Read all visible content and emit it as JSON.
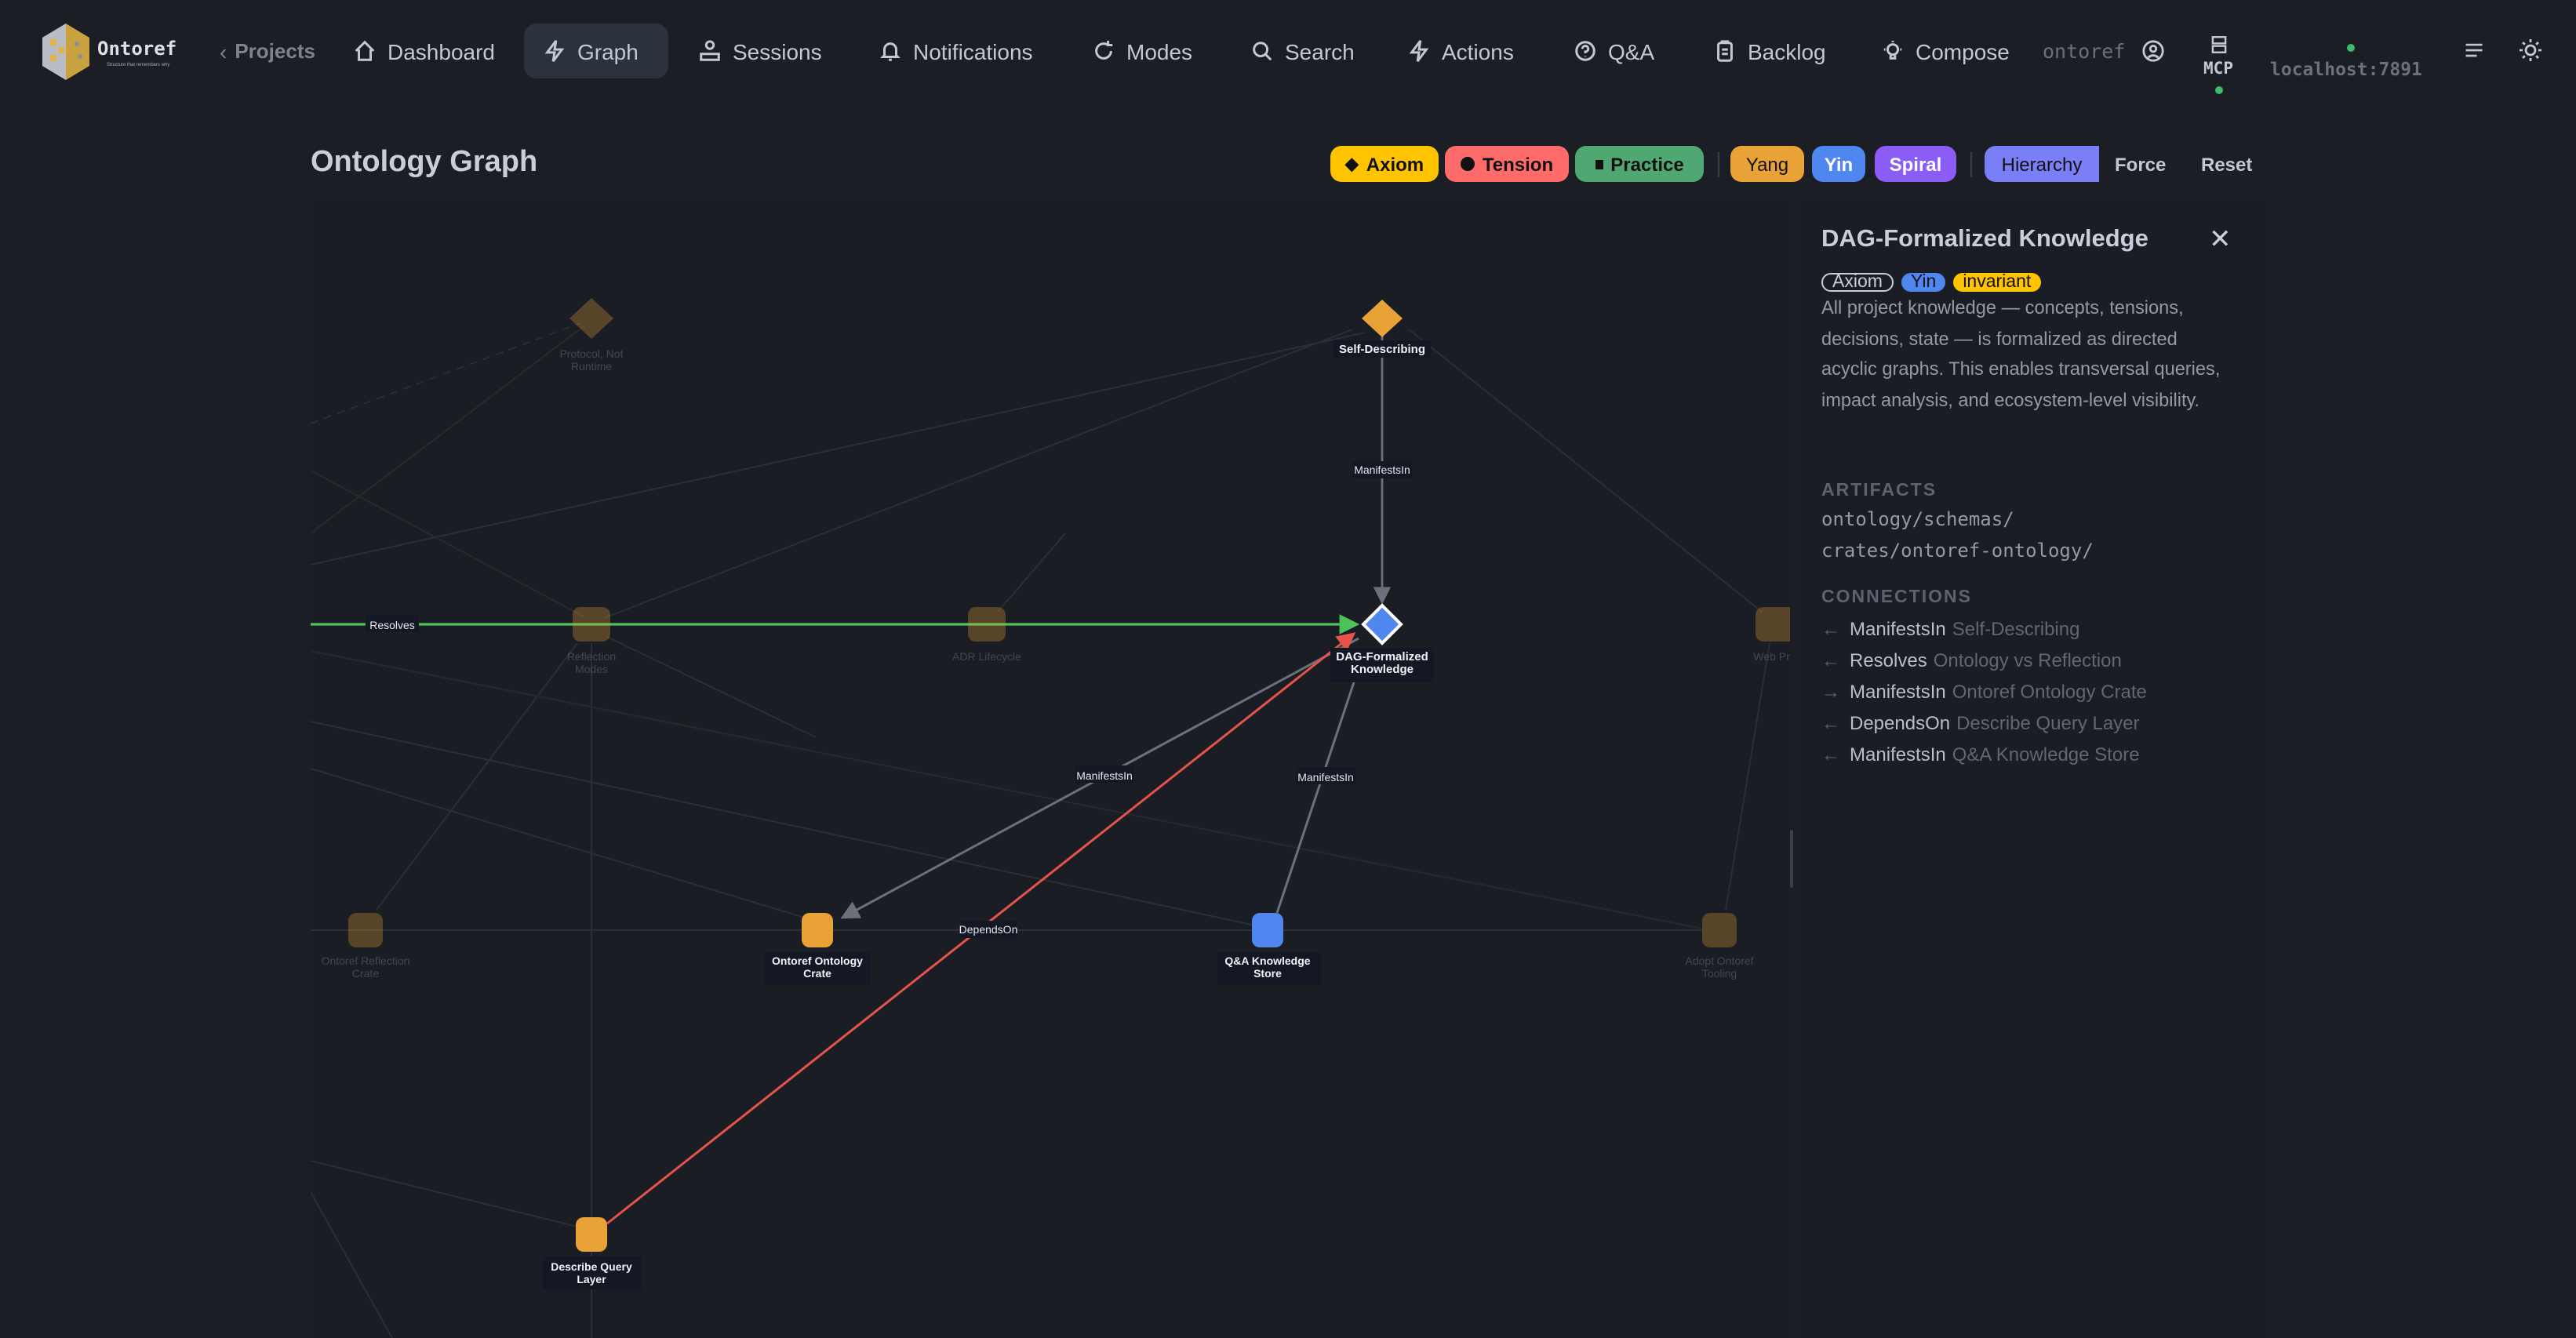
{
  "nav": {
    "brand": "Ontoref",
    "brand_tagline": "Structure that remembers why",
    "back_label": "Projects",
    "items": [
      {
        "label": "Dashboard",
        "icon": "home-icon"
      },
      {
        "label": "Graph",
        "icon": "bolt-icon",
        "active": true
      },
      {
        "label": "Sessions",
        "icon": "sessions-icon"
      },
      {
        "label": "Notifications",
        "icon": "bell-icon"
      },
      {
        "label": "Modes",
        "icon": "refresh-icon"
      },
      {
        "label": "Search",
        "icon": "search-icon"
      },
      {
        "label": "Actions",
        "icon": "bolt-icon"
      },
      {
        "label": "Q&A",
        "icon": "question-icon"
      },
      {
        "label": "Backlog",
        "icon": "clipboard-icon"
      },
      {
        "label": "Compose",
        "icon": "lightbulb-icon"
      }
    ],
    "project": "ontoref",
    "mcp_label": "MCP",
    "host": "localhost:7891",
    "status_color": "#3fb96a"
  },
  "page": {
    "title": "Ontology Graph"
  },
  "filters": {
    "kinds": [
      {
        "label": "Axiom",
        "color": "#ffc300",
        "icon": "diamond-icon"
      },
      {
        "label": "Tension",
        "color": "#ff6b6b",
        "icon": "circle-icon"
      },
      {
        "label": "Practice",
        "color": "#4fa872",
        "icon": "square-icon"
      }
    ],
    "poles": [
      {
        "label": "Yang",
        "color": "#e8a236"
      },
      {
        "label": "Yin",
        "color": "#4f86f0"
      },
      {
        "label": "Spiral",
        "color": "#8b5cf6"
      }
    ],
    "layouts": [
      {
        "label": "Hierarchy",
        "active": true,
        "color": "#7b7ff7"
      },
      {
        "label": "Force",
        "active": false
      }
    ],
    "reset_label": "Reset"
  },
  "graph": {
    "nodes": {
      "protocol": "Protocol, Not Runtime",
      "self_describing": "Self-Describing",
      "reflection_modes": "Reflection Modes",
      "adr_lifecycle": "ADR Lifecycle",
      "dag": "DAG-Formalized Knowledge",
      "web_pres": "Web Pres",
      "reflection_crate": "Ontoref Reflection Crate",
      "ontology_crate": "Ontoref Ontology Crate",
      "qa_store": "Q&A Knowledge Store",
      "adopt_tooling": "Adopt Ontoref Tooling",
      "describe_query": "Describe Query Layer"
    },
    "edges": {
      "resolves": "Resolves",
      "manifests_self": "ManifestsIn",
      "manifests_crate": "ManifestsIn",
      "manifests_qa": "ManifestsIn",
      "depends_on": "DependsOn"
    },
    "colors": {
      "yang": "#e8a236",
      "yin": "#4f86f0",
      "resolves": "#4cc35a",
      "depends": "#e5534b",
      "manifests": "#6b717c"
    }
  },
  "detail": {
    "title": "DAG-Formalized Knowledge",
    "badges": [
      {
        "label": "Axiom",
        "style": "outline"
      },
      {
        "label": "Yin",
        "color": "#4f86f0"
      },
      {
        "label": "invariant",
        "color": "#ffc300"
      }
    ],
    "description": "All project knowledge — concepts, tensions, decisions, state — is formalized as directed acyclic graphs. This enables transversal queries, impact analysis, and ecosystem-level visibility.",
    "artifacts_heading": "ARTIFACTS",
    "artifacts": [
      "ontology/schemas/",
      "crates/ontoref-ontology/"
    ],
    "connections_heading": "CONNECTIONS",
    "connections": [
      {
        "dir": "←",
        "relation": "ManifestsIn",
        "target": "Self-Describing"
      },
      {
        "dir": "←",
        "relation": "Resolves",
        "target": "Ontology vs Reflection"
      },
      {
        "dir": "→",
        "relation": "ManifestsIn",
        "target": "Ontoref Ontology Crate"
      },
      {
        "dir": "←",
        "relation": "DependsOn",
        "target": "Describe Query Layer"
      },
      {
        "dir": "←",
        "relation": "ManifestsIn",
        "target": "Q&A Knowledge Store"
      }
    ]
  }
}
